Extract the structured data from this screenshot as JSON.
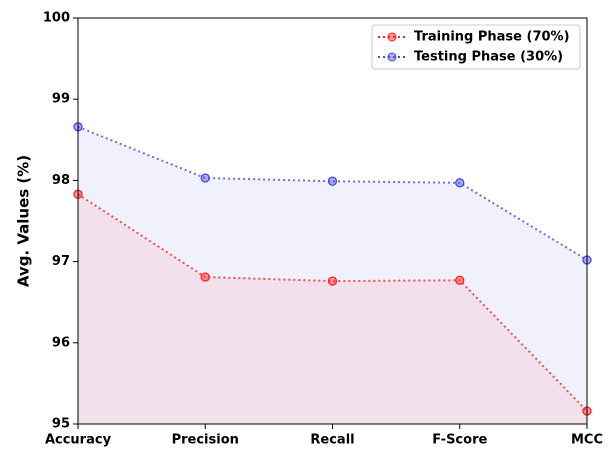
{
  "chart_data": {
    "type": "line",
    "ylabel": "Avg. Values (%)",
    "categories": [
      "Accuracy",
      "Precision",
      "Recall",
      "F-Score",
      "MCC"
    ],
    "series": [
      {
        "name": "Training Phase (70%)",
        "color": "#ff2020",
        "values": [
          97.83,
          96.81,
          96.76,
          96.77,
          95.16
        ]
      },
      {
        "name": "Testing Phase (30%)",
        "color": "#4a4ae0",
        "values": [
          98.66,
          98.03,
          97.99,
          97.97,
          97.02
        ]
      }
    ],
    "ylim": [
      95,
      100
    ],
    "yticks": [
      95,
      96,
      97,
      98,
      99,
      100
    ],
    "legend": "upper right",
    "fill": true
  }
}
